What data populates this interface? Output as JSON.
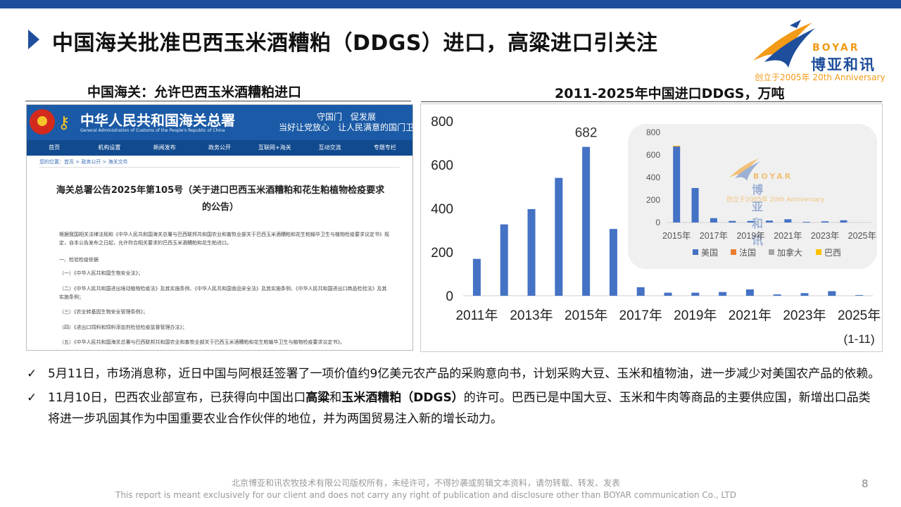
{
  "slide": {
    "title": "中国海关批准巴西玉米酒糟粕（DDGS）进口，高粱进口引关注",
    "page_number": "8"
  },
  "logo": {
    "en": "BOYAR",
    "cn": "博亚和讯",
    "since": "创立于2005年 20th Anniversary"
  },
  "left_panel": {
    "heading": "中国海关：允许巴西玉米酒糟粕进口",
    "screenshot": {
      "org_name": "中华人民共和国海关总署",
      "org_name_en": "General Administration of Customs of the People's Republic of China",
      "slogan_line1": "守国门　促发展",
      "slogan_line2": "当好让党放心　让人民满意的国门卫士",
      "nav": [
        "首页",
        "机构设置",
        "新闻发布",
        "政务公开",
        "互联网+海关",
        "互动交流",
        "专题专栏"
      ],
      "breadcrumb": "您的位置：首页 > 政务公开 > 海关文件",
      "article_title": "海关总署公告2025年第105号（关于进口巴西玉米酒糟粕和花生粕植物检疫要求的公告）",
      "paragraphs": [
        "根据我国相关法律法规和《中华人民共和国海关总署与巴西联邦共和国农业和畜牧业部关于巴西玉米酒糟粕和花生粕输华卫生与植物检疫要求议定书》规定，自本公告发布之日起，允许符合相关要求的巴西玉米酒糟粕和花生粕进口。",
        "一、检验检疫依据",
        "（一）《中华人民共和国生物安全法》；",
        "（二）《中华人民共和国进出境动植物检疫法》及其实施条例、《中华人民共和国食品安全法》及其实施条例、《中华人民共和国进出口商品检验法》及其实施条例；",
        "（三）《农业转基因生物安全管理条例》；",
        "（四）《进出口饲料和饲料添加剂检验检疫监督管理办法》；",
        "（五）《中华人民共和国海关总署与巴西联邦共和国农业和畜牧业部关于巴西玉米酒糟粕和花生粕输华卫生与植物检疫要求议定书》。"
      ]
    }
  },
  "right_panel": {
    "heading": "2011-2025年中国进口DDGS，万吨"
  },
  "chart_data": [
    {
      "type": "bar",
      "categories": [
        "2011年",
        "2012年",
        "2013年",
        "2014年",
        "2015年",
        "2016年",
        "2017年",
        "2018年",
        "2019年",
        "2020年",
        "2021年",
        "2022年",
        "2023年",
        "2024年",
        "2025年"
      ],
      "tick_labels": [
        "2011年",
        "2013年",
        "2015年",
        "2017年",
        "2019年",
        "2021年",
        "2023年",
        "2025年"
      ],
      "tick_note": "(1-11)",
      "values": [
        169,
        327,
        397,
        540,
        682,
        306,
        39,
        14,
        14,
        17,
        29,
        6,
        12,
        21,
        3
      ],
      "data_labels": {
        "2015年": "682"
      },
      "ylim": [
        0,
        800
      ],
      "yticks": [
        "0",
        "200",
        "400",
        "600",
        "800"
      ],
      "color": "#4472c4",
      "grid": false
    },
    {
      "type": "bar",
      "stacked": true,
      "categories": [
        "2015年",
        "2016年",
        "2017年",
        "2018年",
        "2019年",
        "2020年",
        "2021年",
        "2022年",
        "2023年",
        "2024年",
        "2025年"
      ],
      "tick_labels": [
        "2015年",
        "2017年",
        "2019年",
        "2021年",
        "2023年",
        "2025年"
      ],
      "series": [
        {
          "name": "美国",
          "color": "#4472c4",
          "values": [
            677,
            306,
            39,
            14,
            14,
            17,
            29,
            6,
            11,
            20,
            0
          ]
        },
        {
          "name": "法国",
          "color": "#ed7d31",
          "values": [
            1,
            0,
            0,
            0,
            0,
            0,
            0,
            0,
            0,
            0,
            0
          ]
        },
        {
          "name": "加拿大",
          "color": "#a5a5a5",
          "values": [
            2,
            0,
            0,
            0,
            0,
            0,
            0,
            0,
            0,
            0,
            0
          ]
        },
        {
          "name": "巴西",
          "color": "#ffc000",
          "values": [
            2,
            0,
            0,
            0,
            0,
            0,
            0,
            0,
            0,
            0,
            0
          ]
        }
      ],
      "ylim": [
        0,
        800
      ],
      "yticks": [
        "0",
        "200",
        "400",
        "600",
        "800"
      ],
      "legend_position": "bottom",
      "grid": false
    }
  ],
  "bullets": [
    {
      "icon": "check-icon",
      "text": "5月11日，市场消息称，近日中国与阿根廷签署了一项价值约9亿美元农产品的采购意向书，计划采购大豆、玉米和植物油，进一步减少对美国农产品的依赖。"
    },
    {
      "icon": "check-icon",
      "text_before": "11月10日，巴西农业部宣布，已获得向中国出口",
      "bold1": "高粱",
      "text_mid": "和",
      "bold2": "玉米酒糟粕（DDGS）",
      "text_after": "的许可。巴西已是中国大豆、玉米和牛肉等商品的主要供应国，新增出口品类将进一步巩固其作为中国重要农业合作伙伴的地位，并为两国贸易注入新的增长动力。"
    }
  ],
  "footer": {
    "line1": "北京博亚和讯农牧技术有限公司版权所有，未经许可，不得抄袭或剪辑文本资料，请勿转载、转发、发表",
    "line2": "This report is meant exclusively for our client and does not carry any right of publication and disclosure other than BOYAR communication Co., LTD"
  }
}
